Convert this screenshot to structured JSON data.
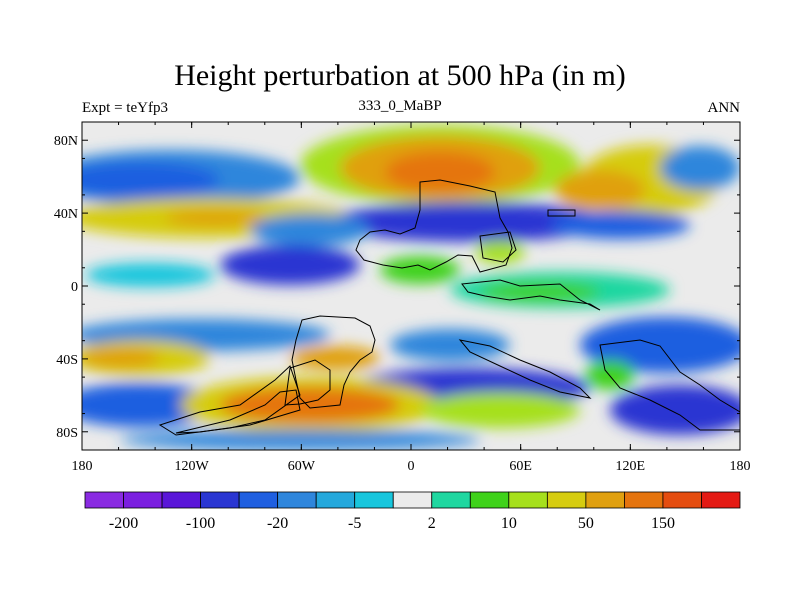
{
  "map": {
    "title": "Height perturbation at 500 hPa (in m)",
    "left_string": "Expt = teYfp3",
    "center_string": "333_0_MaBP",
    "right_string": "ANN",
    "lat_ticks": [
      "80N",
      "40N",
      "0",
      "40S",
      "80S"
    ],
    "lon_ticks": [
      "180",
      "120W",
      "60W",
      "0",
      "60E",
      "120E",
      "180"
    ]
  },
  "colorbar": {
    "colors": [
      "#8a2be2",
      "#7b1fe0",
      "#5a16d8",
      "#2a36d2",
      "#1f5fe0",
      "#2f86dc",
      "#24a8dc",
      "#18c6dd",
      "#ebebeb",
      "#1fd7a0",
      "#3fd21a",
      "#a6e01c",
      "#d6cc10",
      "#e0a010",
      "#e5740e",
      "#e54d10",
      "#e41a14"
    ],
    "labels": [
      "-200",
      "-100",
      "-20",
      "-5",
      "2",
      "10",
      "50",
      "150"
    ]
  },
  "colors": {
    "grey": "#ebebeb",
    "deep_blue": "#2a36d2",
    "blue": "#1f5fe0",
    "mid_blue": "#2f86dc",
    "cyan": "#18c6dd",
    "light_green": "#3fd21a",
    "teal_green": "#1fd7a0",
    "yellow_green": "#a6e01c",
    "yellow": "#d6cc10",
    "orange": "#e0a010",
    "dark_orange": "#e5740e",
    "red_orange": "#e54d10"
  }
}
